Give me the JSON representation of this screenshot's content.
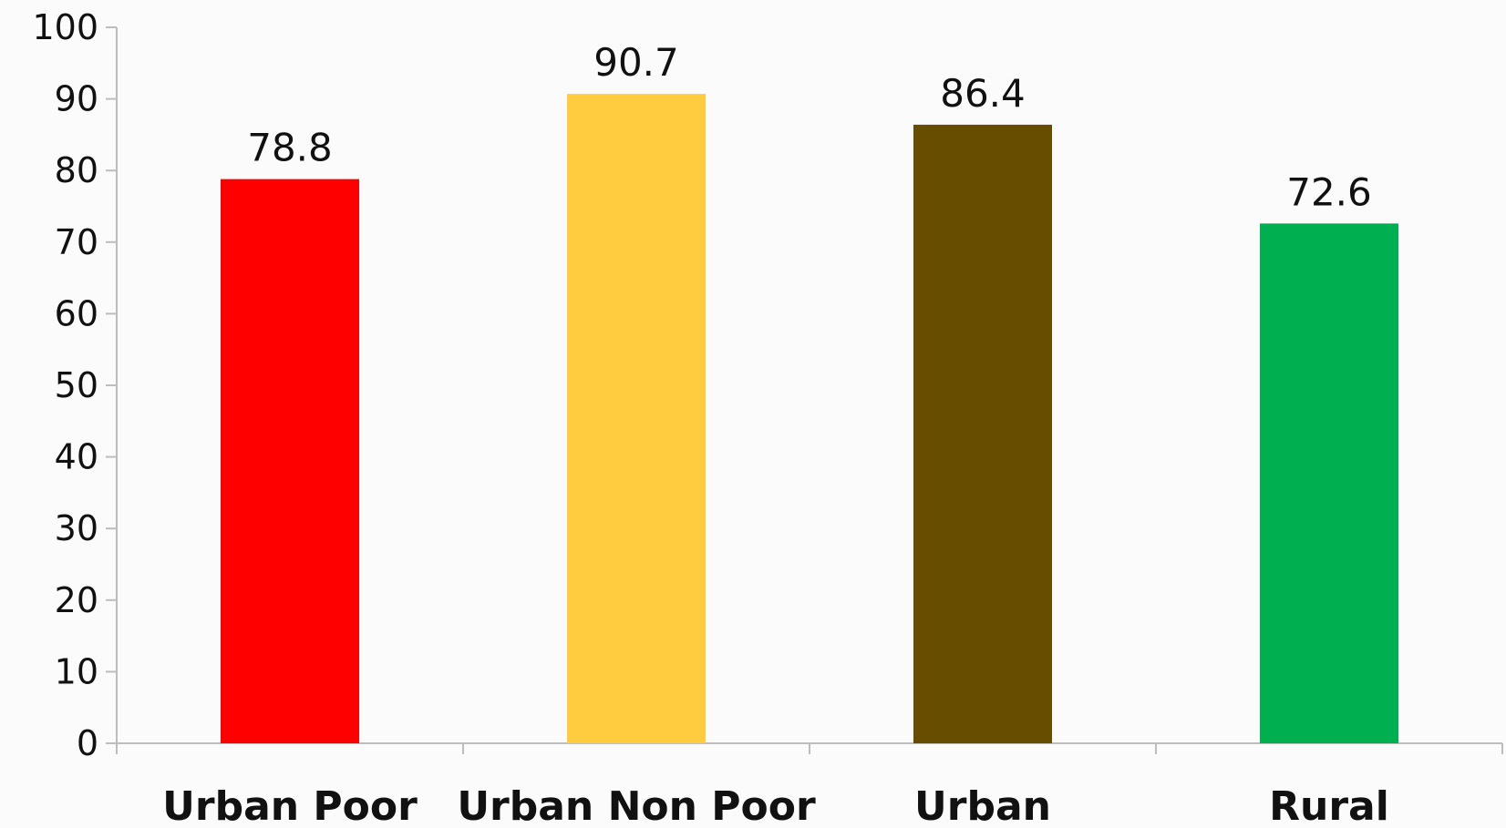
{
  "chart_data": {
    "type": "bar",
    "categories": [
      "Urban Poor",
      "Urban Non Poor",
      "Urban",
      "Rural"
    ],
    "values": [
      78.8,
      90.7,
      86.4,
      72.6
    ],
    "value_labels": [
      "78.8",
      "90.7",
      "86.4",
      "72.6"
    ],
    "colors": [
      "#ff0000",
      "#ffcc40",
      "#664d00",
      "#00b050"
    ],
    "ylim": [
      0,
      100
    ],
    "yticks": [
      "0",
      "10",
      "20",
      "30",
      "40",
      "50",
      "60",
      "70",
      "80",
      "90",
      "100"
    ],
    "title": "",
    "xlabel": "",
    "ylabel": "",
    "grid": false,
    "legend": false
  }
}
